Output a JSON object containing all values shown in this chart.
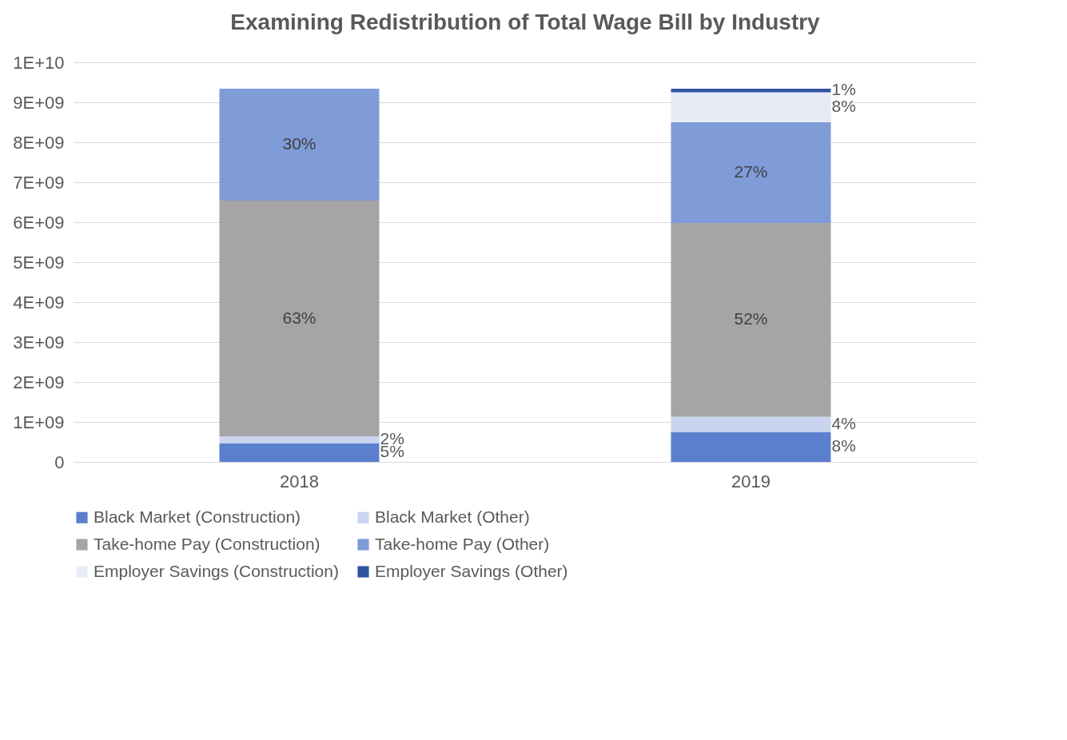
{
  "chart_data": {
    "type": "bar",
    "title": "Examining Redistribution of Total Wage Bill by Industry",
    "categories": [
      "2018",
      "2019"
    ],
    "stacked": true,
    "ylim": [
      0,
      10000000000
    ],
    "yticks": [
      0,
      {
        "value": 1000000000,
        "label": "1E+09"
      },
      {
        "value": 2000000000,
        "label": "2E+09"
      },
      {
        "value": 3000000000,
        "label": "3E+09"
      },
      {
        "value": 4000000000,
        "label": "4E+09"
      },
      {
        "value": 5000000000,
        "label": "5E+09"
      },
      {
        "value": 6000000000,
        "label": "6E+09"
      },
      {
        "value": 7000000000,
        "label": "7E+09"
      },
      {
        "value": 8000000000,
        "label": "8E+09"
      },
      {
        "value": 9000000000,
        "label": "9E+09"
      },
      {
        "value": 10000000000,
        "label": "1E+10"
      }
    ],
    "grid": "y",
    "legend": "bottom",
    "series": [
      {
        "name": "Black Market (Construction)",
        "color": "#5b7fcc",
        "values": [
          470000000,
          750000000
        ]
      },
      {
        "name": "Black Market (Other)",
        "color": "#c9d5ee",
        "values": [
          170000000,
          380000000
        ]
      },
      {
        "name": "Take-home Pay (Construction)",
        "color": "#a5a5a5",
        "values": [
          5900000000,
          4850000000
        ]
      },
      {
        "name": "Take-home Pay (Other)",
        "color": "#7f9bd8",
        "values": [
          2800000000,
          2520000000
        ]
      },
      {
        "name": "Employer Savings (Construction)",
        "color": "#e6ebf5",
        "values": [
          null,
          750000000
        ]
      },
      {
        "name": "Employer Savings (Other)",
        "color": "#2f55a0",
        "values": [
          null,
          90000000
        ]
      }
    ],
    "annotations": [
      "5%",
      "2%",
      "63%",
      "30%",
      "8%",
      "4%",
      "52%",
      "27%",
      "8%",
      "1%"
    ]
  }
}
